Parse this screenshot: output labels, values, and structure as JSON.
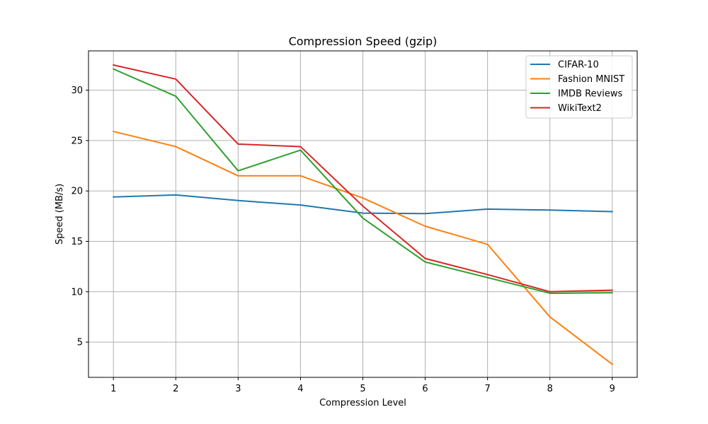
{
  "chart_data": {
    "type": "line",
    "title": "Compression Speed (gzip)",
    "xlabel": "Compression Level",
    "ylabel": "Speed (MB/s)",
    "x": [
      1,
      2,
      3,
      4,
      5,
      6,
      7,
      8,
      9
    ],
    "xticks": [
      1,
      2,
      3,
      4,
      5,
      6,
      7,
      8,
      9
    ],
    "yticks": [
      5,
      10,
      15,
      20,
      25,
      30
    ],
    "xlim": [
      0.6,
      9.4
    ],
    "ylim": [
      1.5,
      33.9
    ],
    "grid": true,
    "legend_position": "top-right",
    "series": [
      {
        "name": "CIFAR-10",
        "color": "#1f77b4",
        "values": [
          19.4,
          19.6,
          19.05,
          18.6,
          17.8,
          17.75,
          18.2,
          18.1,
          17.95
        ]
      },
      {
        "name": "Fashion MNIST",
        "color": "#ff7f0e",
        "values": [
          25.9,
          24.4,
          21.5,
          21.5,
          19.3,
          16.5,
          14.7,
          7.5,
          2.8
        ]
      },
      {
        "name": "IMDB Reviews",
        "color": "#2ca02c",
        "values": [
          32.1,
          29.4,
          22.0,
          24.05,
          17.3,
          12.95,
          11.4,
          9.85,
          9.9
        ]
      },
      {
        "name": "WikiText2",
        "color": "#d62728",
        "values": [
          32.5,
          31.1,
          24.65,
          24.4,
          18.5,
          13.3,
          11.7,
          10.0,
          10.15
        ]
      }
    ]
  }
}
